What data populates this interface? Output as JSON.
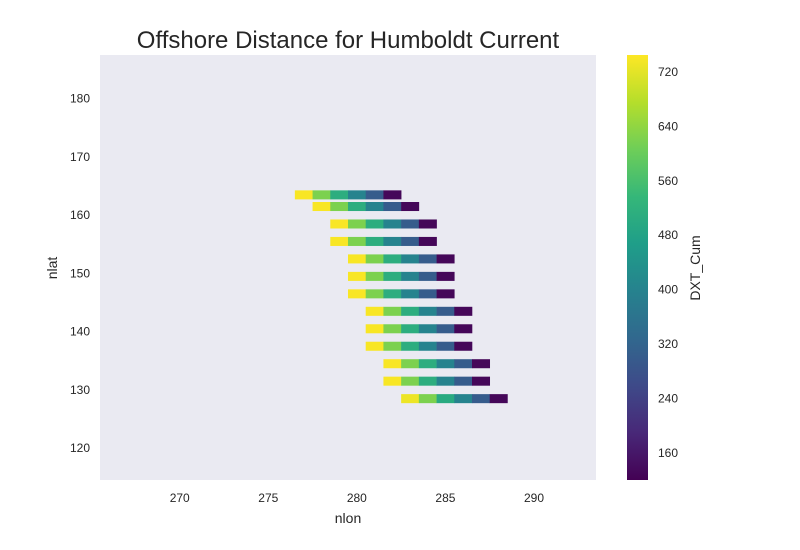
{
  "chart_data": {
    "type": "heatmap",
    "title": "Offshore Distance for Humboldt Current",
    "xlabel": "nlon",
    "ylabel": "nlat",
    "colorbar_label": "DXT_Cum",
    "colormap": "viridis",
    "grid": false,
    "background_color": "#eaeaf2",
    "xlim": [
      265.5,
      293.5
    ],
    "ylim": [
      114.5,
      187.5
    ],
    "x_ticks": [
      270,
      275,
      280,
      285,
      290
    ],
    "y_ticks": [
      120,
      130,
      140,
      150,
      160,
      170,
      180
    ],
    "x_tick_labels": [
      "270",
      "275",
      "280",
      "285",
      "290"
    ],
    "y_tick_labels": [
      "120",
      "130",
      "140",
      "150",
      "160",
      "170",
      "180"
    ],
    "colorbar_range": [
      120,
      745
    ],
    "colorbar_ticks": [
      160,
      240,
      320,
      400,
      480,
      560,
      640,
      720
    ],
    "colorbar_tick_labels": [
      "160",
      "240",
      "320",
      "400",
      "480",
      "560",
      "640",
      "720"
    ],
    "cell_size": [
      1,
      1.5
    ],
    "rows": [
      {
        "y": 128.5,
        "x_start": 283,
        "values": [
          730,
          620,
          500,
          400,
          300,
          130
        ]
      },
      {
        "y": 131.5,
        "x_start": 282,
        "values": [
          740,
          620,
          510,
          400,
          300,
          130
        ]
      },
      {
        "y": 134.5,
        "x_start": 282,
        "values": [
          740,
          620,
          510,
          400,
          300,
          130
        ]
      },
      {
        "y": 137.5,
        "x_start": 281,
        "values": [
          740,
          620,
          510,
          400,
          300,
          130
        ]
      },
      {
        "y": 140.5,
        "x_start": 281,
        "values": [
          740,
          620,
          510,
          400,
          300,
          130
        ]
      },
      {
        "y": 143.5,
        "x_start": 281,
        "values": [
          740,
          620,
          510,
          400,
          300,
          130
        ]
      },
      {
        "y": 146.5,
        "x_start": 280,
        "values": [
          740,
          620,
          510,
          400,
          300,
          130
        ]
      },
      {
        "y": 149.5,
        "x_start": 280,
        "values": [
          740,
          620,
          510,
          400,
          300,
          130
        ]
      },
      {
        "y": 152.5,
        "x_start": 280,
        "values": [
          740,
          620,
          510,
          400,
          300,
          130
        ]
      },
      {
        "y": 155.5,
        "x_start": 279,
        "values": [
          740,
          620,
          510,
          400,
          300,
          130
        ]
      },
      {
        "y": 158.5,
        "x_start": 279,
        "values": [
          740,
          620,
          510,
          400,
          300,
          130
        ]
      },
      {
        "y": 161.5,
        "x_start": 278,
        "values": [
          740,
          620,
          510,
          400,
          300,
          130
        ]
      },
      {
        "y": 163.5,
        "x_start": 277,
        "values": [
          740,
          620,
          510,
          400,
          300,
          130
        ]
      }
    ]
  }
}
